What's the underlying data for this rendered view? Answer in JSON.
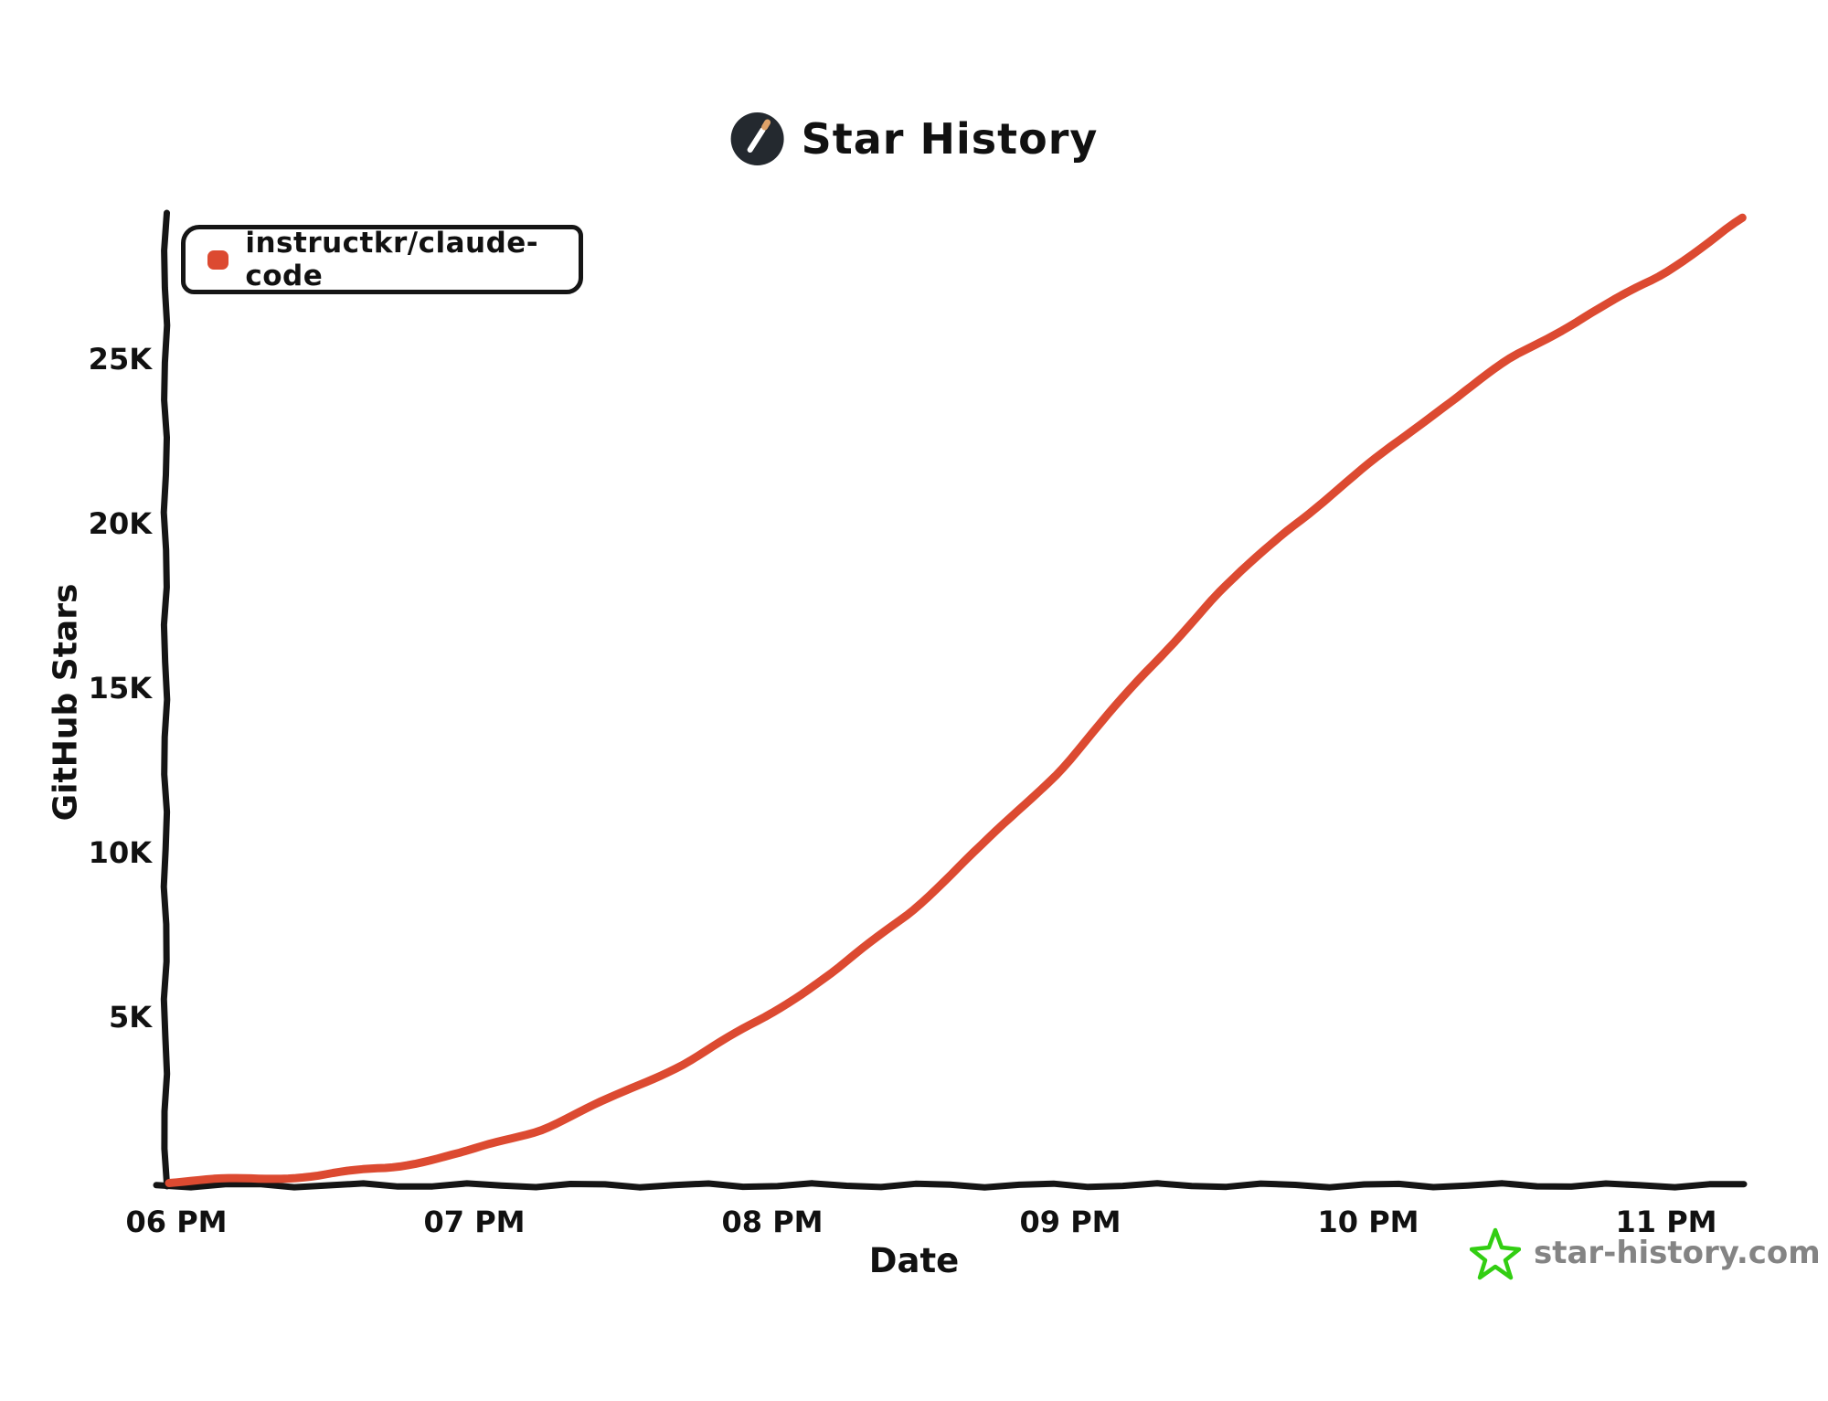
{
  "header": {
    "title": "Star History"
  },
  "legend": {
    "items": [
      {
        "label": "instructkr/claude-code",
        "color": "#DC4A31"
      }
    ]
  },
  "watermark": {
    "text": "star-history.com",
    "star_color": "#32CE12",
    "text_color": "#848484"
  },
  "colors": {
    "axis": "#151515",
    "line": "#DC4A31",
    "logo_bg": "#24292F",
    "logo_wand": "#FFFFFF",
    "logo_tip": "#DFA269"
  },
  "chart_data": {
    "type": "line",
    "title": "Star History",
    "xlabel": "Date",
    "ylabel": "GitHub Stars",
    "grid": false,
    "legend_position": "top-left",
    "x_tick_labels": [
      "06 PM",
      "07 PM",
      "08 PM",
      "09 PM",
      "10 PM",
      "11 PM"
    ],
    "x_ticks_hours": [
      18,
      19,
      20,
      21,
      22,
      23
    ],
    "y_tick_labels": [
      "5K",
      "10K",
      "15K",
      "20K",
      "25K"
    ],
    "y_ticks": [
      5000,
      10000,
      15000,
      20000,
      25000
    ],
    "xlim_hours": [
      18,
      23.3
    ],
    "ylim": [
      0,
      29400
    ],
    "series": [
      {
        "name": "instructkr/claude-code",
        "color": "#DC4A31",
        "x_hours": [
          18.0,
          18.25,
          18.5,
          18.75,
          19.0,
          19.25,
          19.5,
          19.75,
          20.0,
          20.25,
          20.5,
          20.75,
          21.0,
          21.25,
          21.5,
          21.75,
          22.0,
          22.25,
          22.5,
          22.75,
          23.0,
          23.28
        ],
        "values": [
          0,
          80,
          180,
          450,
          900,
          1600,
          2600,
          3700,
          5000,
          6500,
          8300,
          10400,
          12600,
          15200,
          17700,
          19800,
          21600,
          23400,
          25000,
          26300,
          27500,
          29300
        ]
      }
    ]
  }
}
